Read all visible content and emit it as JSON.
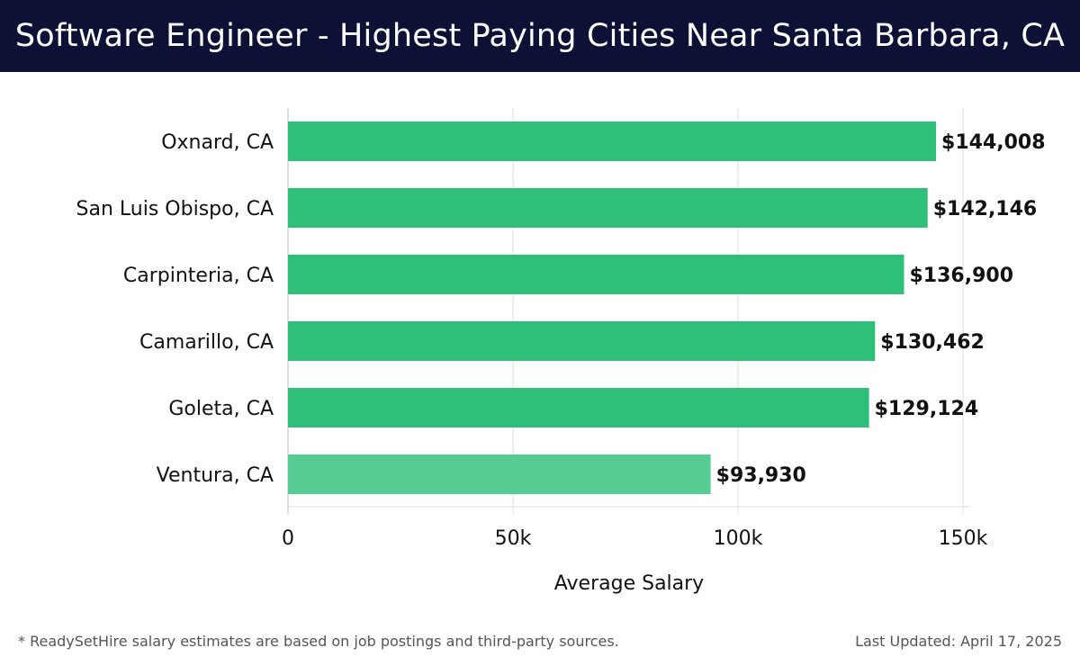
{
  "header": {
    "title": "Software Engineer - Highest Paying Cities Near Santa Barbara, CA"
  },
  "chart_data": {
    "type": "bar",
    "orientation": "horizontal",
    "categories": [
      "Oxnard, CA",
      "San Luis Obispo, CA",
      "Carpinteria, CA",
      "Camarillo, CA",
      "Goleta, CA",
      "Ventura, CA"
    ],
    "values": [
      144008,
      142146,
      136900,
      130462,
      129124,
      93930
    ],
    "value_labels": [
      "$144,008",
      "$142,146",
      "$136,900",
      "$130,462",
      "$129,124",
      "$93,930"
    ],
    "xlabel": "Average Salary",
    "xlim": [
      0,
      150000
    ],
    "x_ticks": [
      0,
      50000,
      100000,
      150000
    ],
    "x_tick_labels": [
      "0",
      "50k",
      "100k",
      "150k"
    ],
    "grid": true,
    "bar_color": "#2ebf78",
    "highlight_color": "#57cd95"
  },
  "footer": {
    "note": "* ReadySetHire salary estimates are based on job postings and third-party sources.",
    "updated": "Last Updated: April 17, 2025"
  }
}
